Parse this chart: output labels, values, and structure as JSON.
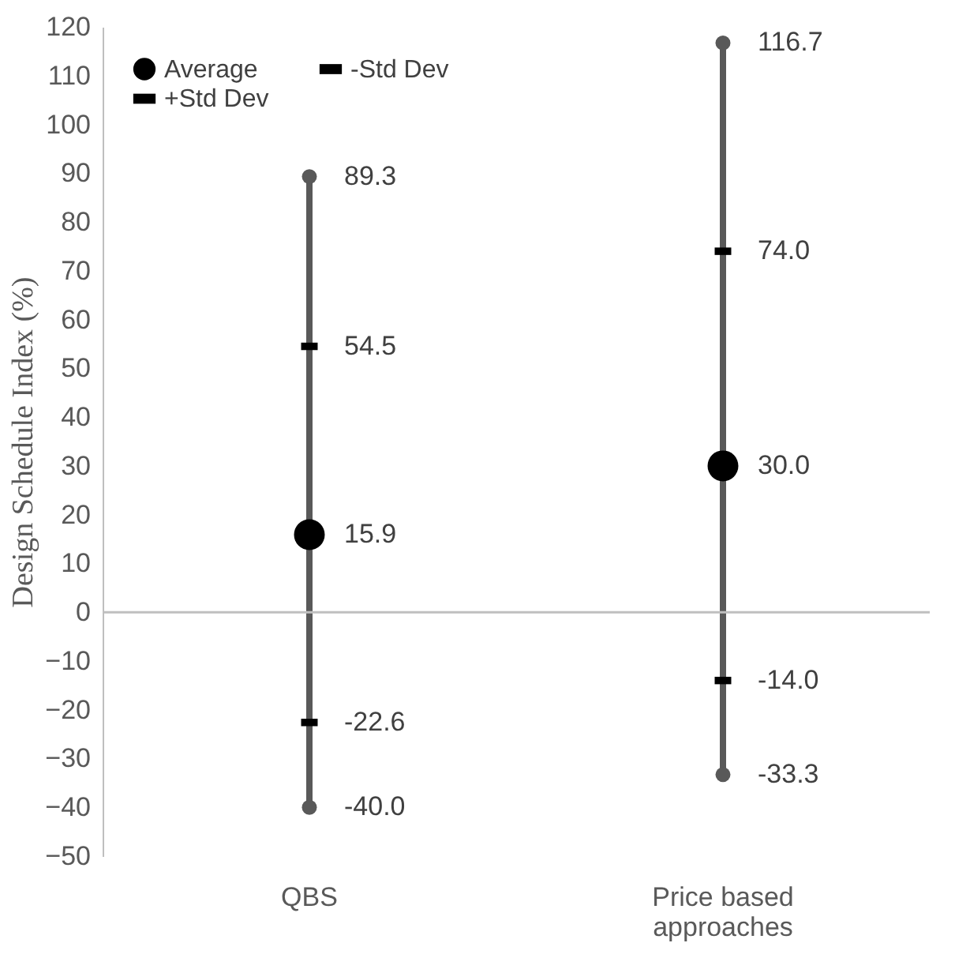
{
  "chart_data": {
    "type": "scatter",
    "ylabel": "Design Schedule Index (%)",
    "categories": [
      "QBS",
      "Price based approaches"
    ],
    "series": [
      {
        "type": "bar",
        "color": "#595959",
        "base": [
          -40.0,
          -33.3
        ],
        "values": [
          129.3,
          150.0
        ]
      },
      {
        "name": "Average",
        "color": "#000000",
        "marker": "circle",
        "values": [
          15.9,
          30.0
        ],
        "value_labels": [
          "15.9",
          "30.0"
        ]
      },
      {
        "name": "+Std Dev",
        "color": "#000000",
        "values": [
          54.5,
          74.0
        ],
        "value_labels": [
          "54.5",
          "74.0"
        ]
      },
      {
        "name": "-Std Dev",
        "color": "#000000",
        "values": [
          -22.6,
          -14.0
        ],
        "value_labels": [
          "-22.6",
          "-14.0"
        ]
      },
      {
        "color": "#595959",
        "marker": "circle",
        "values": [
          89.3,
          116.7
        ],
        "value_labels": [
          "89.3",
          "116.7"
        ]
      },
      {
        "color": "#595959",
        "marker": "circle",
        "values": [
          -40.0,
          -33.3
        ],
        "value_labels": [
          "-40.0",
          "-33.3"
        ]
      }
    ],
    "ylim": [
      -50,
      120
    ],
    "yticks": [
      -50,
      -40,
      -30,
      -20,
      -10,
      0,
      10,
      20,
      30,
      40,
      50,
      60,
      70,
      80,
      90,
      100,
      110,
      120
    ],
    "ref_lines": [
      {
        "axis": "y",
        "value": 0,
        "color": "#bfbfbf"
      }
    ],
    "grid": false,
    "legend": "top left"
  }
}
